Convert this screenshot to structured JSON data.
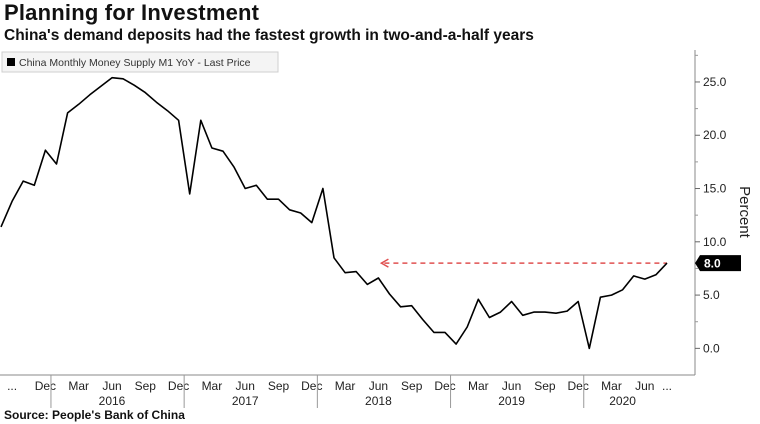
{
  "header": {
    "title": "Planning for Investment",
    "subtitle": "China's demand deposits had the fastest growth in two-and-a-half years"
  },
  "footer": {
    "source": "Source: People's Bank of China"
  },
  "chart_data": {
    "type": "line",
    "title": "Planning for Investment",
    "subtitle": "China's demand deposits had the fastest growth in two-and-a-half years",
    "ylabel": "Percent",
    "xlabel": "",
    "ylim": [
      -2.5,
      28
    ],
    "yticks": [
      0.0,
      5.0,
      10.0,
      15.0,
      20.0,
      25.0
    ],
    "ytick_labels": [
      "0.0",
      "5.0",
      "10.0",
      "15.0",
      "20.0",
      "25.0"
    ],
    "grid": false,
    "legend": {
      "position": "top-left",
      "entries": [
        "China Monthly Money Supply M1 YoY - Last Price"
      ]
    },
    "last_value_label": "8.0",
    "reference_line": {
      "y": 8.0,
      "style": "dashed",
      "color": "#e05050",
      "from": "2018-06",
      "to": "2020-08"
    },
    "x_month_labels": [
      "...",
      "Dec",
      "Mar",
      "Jun",
      "Sep",
      "Dec",
      "Mar",
      "Jun",
      "Sep",
      "Dec",
      "Mar",
      "Jun",
      "Sep",
      "Dec",
      "Mar",
      "Jun",
      "Sep",
      "Dec",
      "Mar",
      "Jun",
      "..."
    ],
    "x_month_positions": [
      "2015-09",
      "2015-12",
      "2016-03",
      "2016-06",
      "2016-09",
      "2016-12",
      "2017-03",
      "2017-06",
      "2017-09",
      "2017-12",
      "2018-03",
      "2018-06",
      "2018-09",
      "2018-12",
      "2019-03",
      "2019-06",
      "2019-09",
      "2019-12",
      "2020-03",
      "2020-06",
      "2020-08"
    ],
    "x_year_labels": [
      "2016",
      "2017",
      "2018",
      "2019",
      "2020"
    ],
    "x_year_positions": [
      "2016-06",
      "2017-06",
      "2018-06",
      "2019-06",
      "2020-04"
    ],
    "series": [
      {
        "name": "China Monthly Money Supply M1 YoY - Last Price",
        "color": "#000000",
        "x": [
          "2015-08",
          "2015-09",
          "2015-10",
          "2015-11",
          "2015-12",
          "2016-01",
          "2016-02",
          "2016-03",
          "2016-04",
          "2016-05",
          "2016-06",
          "2016-07",
          "2016-08",
          "2016-09",
          "2016-10",
          "2016-11",
          "2016-12",
          "2017-01",
          "2017-02",
          "2017-03",
          "2017-04",
          "2017-05",
          "2017-06",
          "2017-07",
          "2017-08",
          "2017-09",
          "2017-10",
          "2017-11",
          "2017-12",
          "2018-01",
          "2018-02",
          "2018-03",
          "2018-04",
          "2018-05",
          "2018-06",
          "2018-07",
          "2018-08",
          "2018-09",
          "2018-10",
          "2018-11",
          "2018-12",
          "2019-01",
          "2019-02",
          "2019-03",
          "2019-04",
          "2019-05",
          "2019-06",
          "2019-07",
          "2019-08",
          "2019-09",
          "2019-10",
          "2019-11",
          "2019-12",
          "2020-01",
          "2020-02",
          "2020-03",
          "2020-04",
          "2020-05",
          "2020-06",
          "2020-07",
          "2020-08"
        ],
        "values": [
          11.4,
          13.8,
          15.7,
          15.3,
          18.6,
          17.3,
          22.1,
          22.9,
          23.8,
          24.6,
          25.4,
          25.3,
          24.7,
          24.0,
          23.1,
          22.3,
          21.4,
          14.5,
          21.4,
          18.8,
          18.5,
          17.0,
          15.0,
          15.3,
          14.0,
          14.0,
          13.0,
          12.7,
          11.8,
          15.0,
          8.5,
          7.1,
          7.2,
          6.0,
          6.6,
          5.1,
          3.9,
          4.0,
          2.7,
          1.5,
          1.5,
          0.4,
          2.0,
          4.6,
          2.9,
          3.4,
          4.4,
          3.1,
          3.4,
          3.4,
          3.3,
          3.5,
          4.4,
          0.0,
          4.8,
          5.0,
          5.5,
          6.8,
          6.5,
          6.9,
          8.0
        ]
      }
    ]
  }
}
